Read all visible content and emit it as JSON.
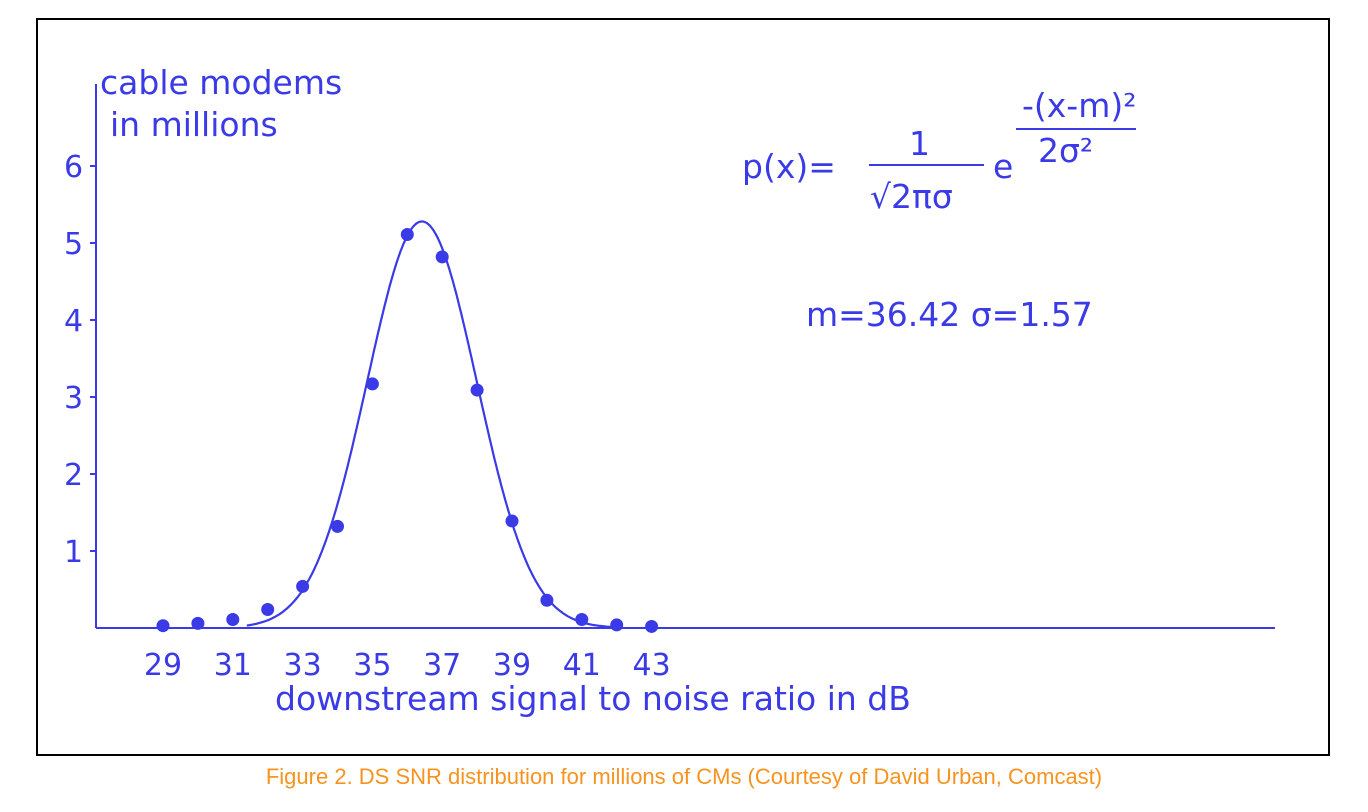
{
  "caption": "Figure 2. DS SNR distribution for millions of CMs (Courtesy of David Urban, Comcast)",
  "chart_data": {
    "type": "scatter",
    "color": "#3a3ae6",
    "ylabel_lines": [
      "cable modems",
      "in millions"
    ],
    "xlabel": "downstream signal to noise ratio in dB",
    "xlim": [
      28,
      45
    ],
    "ylim": [
      0,
      7
    ],
    "x_ticks": [
      29,
      31,
      33,
      35,
      37,
      39,
      41,
      43
    ],
    "y_ticks": [
      1,
      2,
      3,
      4,
      5,
      6
    ],
    "points": {
      "x": [
        29,
        30,
        31,
        32,
        33,
        34,
        35,
        36,
        37,
        38,
        39,
        40,
        41,
        42,
        43
      ],
      "y": [
        0.03,
        0.06,
        0.11,
        0.24,
        0.54,
        1.32,
        3.17,
        5.11,
        4.82,
        3.09,
        1.39,
        0.36,
        0.11,
        0.04,
        0.02
      ]
    },
    "fit": {
      "type": "normal",
      "m": 36.42,
      "sigma": 1.57,
      "peak": 5.28,
      "x_start": 31.4,
      "x_end": 42.0
    },
    "formula": {
      "lhs": "p(x)=",
      "numerator": "1",
      "denominator": "√2πσ",
      "base": "e",
      "exp_numerator": "-(x-m)²",
      "exp_denominator": "2σ²"
    },
    "params_label": "m=36.42 σ=1.57"
  }
}
